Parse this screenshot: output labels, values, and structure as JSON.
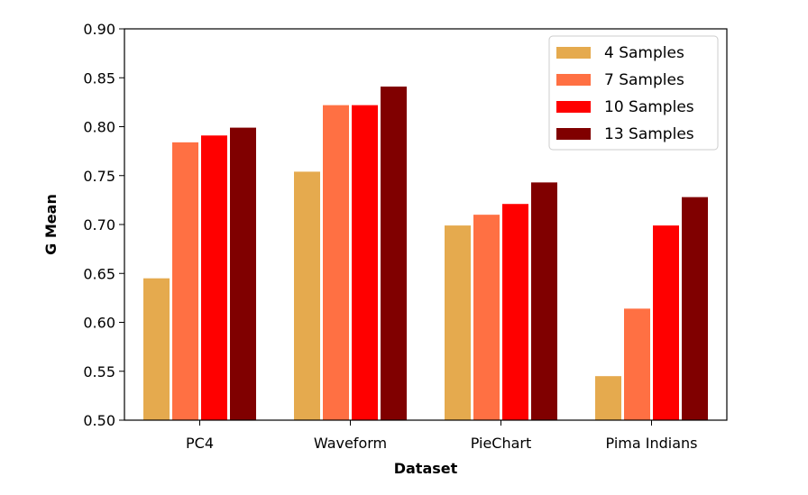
{
  "chart_data": {
    "type": "bar",
    "categories": [
      "PC4",
      "Waveform",
      "PieChart",
      "Pima Indians"
    ],
    "series": [
      {
        "name": "4 Samples",
        "color": "#E5AA4E",
        "values": [
          0.645,
          0.754,
          0.699,
          0.545
        ]
      },
      {
        "name": "7 Samples",
        "color": "#FF7043",
        "values": [
          0.784,
          0.822,
          0.71,
          0.614
        ]
      },
      {
        "name": "10 Samples",
        "color": "#FF0000",
        "values": [
          0.791,
          0.822,
          0.721,
          0.699
        ]
      },
      {
        "name": "13 Samples",
        "color": "#800000",
        "values": [
          0.799,
          0.841,
          0.743,
          0.728
        ]
      }
    ],
    "xlabel": "Dataset",
    "ylabel": "G Mean",
    "ylim": [
      0.5,
      0.9
    ],
    "yticks": [
      "0.50",
      "0.55",
      "0.60",
      "0.65",
      "0.70",
      "0.75",
      "0.80",
      "0.85",
      "0.90"
    ],
    "grid": false,
    "legend_position": "top-right"
  }
}
